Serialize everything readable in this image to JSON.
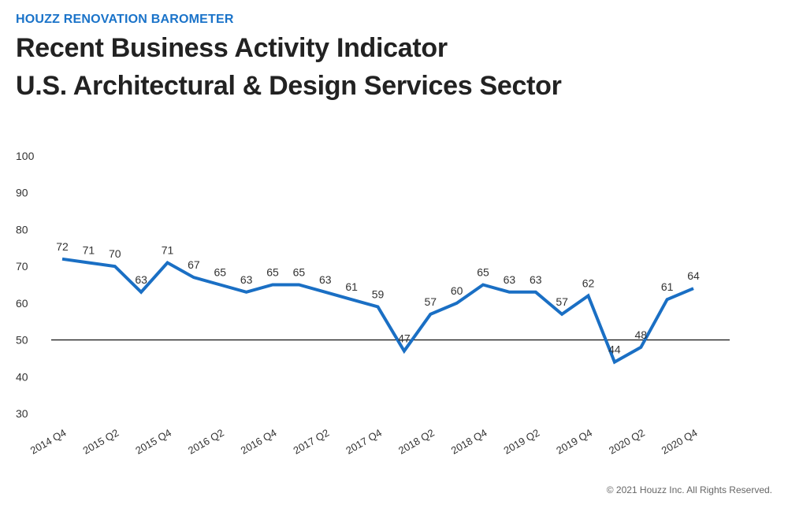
{
  "header": {
    "kicker": "HOUZZ RENOVATION BAROMETER",
    "title_line1": "Recent Business Activity Indicator",
    "title_line2": "U.S. Architectural & Design Services Sector"
  },
  "footer": {
    "copyright": "© 2021 Houzz Inc. All Rights Reserved."
  },
  "colors": {
    "line": "#1a6fc4",
    "kicker": "#1a73c9",
    "reference_line": "#000000"
  },
  "chart_data": {
    "type": "line",
    "title": "Recent Business Activity Indicator U.S. Architectural & Design Services Sector",
    "xlabel": "",
    "ylabel": "",
    "ylim": [
      30,
      100
    ],
    "yticks": [
      30,
      40,
      50,
      60,
      70,
      80,
      90,
      100
    ],
    "reference_line": 50,
    "grid": false,
    "x_tick_labels": [
      "2014 Q4",
      "2015 Q2",
      "2015 Q4",
      "2016 Q2",
      "2016 Q4",
      "2017 Q2",
      "2017 Q4",
      "2018 Q2",
      "2018 Q4",
      "2019 Q2",
      "2019 Q4",
      "2020 Q2",
      "2020 Q4"
    ],
    "x": [
      "2014 Q4",
      "2015 Q1",
      "2015 Q2",
      "2015 Q3",
      "2015 Q4",
      "2016 Q1",
      "2016 Q2",
      "2016 Q3",
      "2016 Q4",
      "2017 Q1",
      "2017 Q2",
      "2017 Q3",
      "2017 Q4",
      "2018 Q1",
      "2018 Q2",
      "2018 Q3",
      "2018 Q4",
      "2019 Q1",
      "2019 Q2",
      "2019 Q3",
      "2019 Q4",
      "2020 Q1",
      "2020 Q2",
      "2020 Q3",
      "2020 Q4"
    ],
    "series": [
      {
        "values": [
          72,
          71,
          70,
          63,
          71,
          67,
          65,
          63,
          65,
          65,
          63,
          61,
          59,
          47,
          57,
          60,
          65,
          63,
          63,
          57,
          62,
          44,
          48,
          61,
          64
        ]
      }
    ]
  }
}
